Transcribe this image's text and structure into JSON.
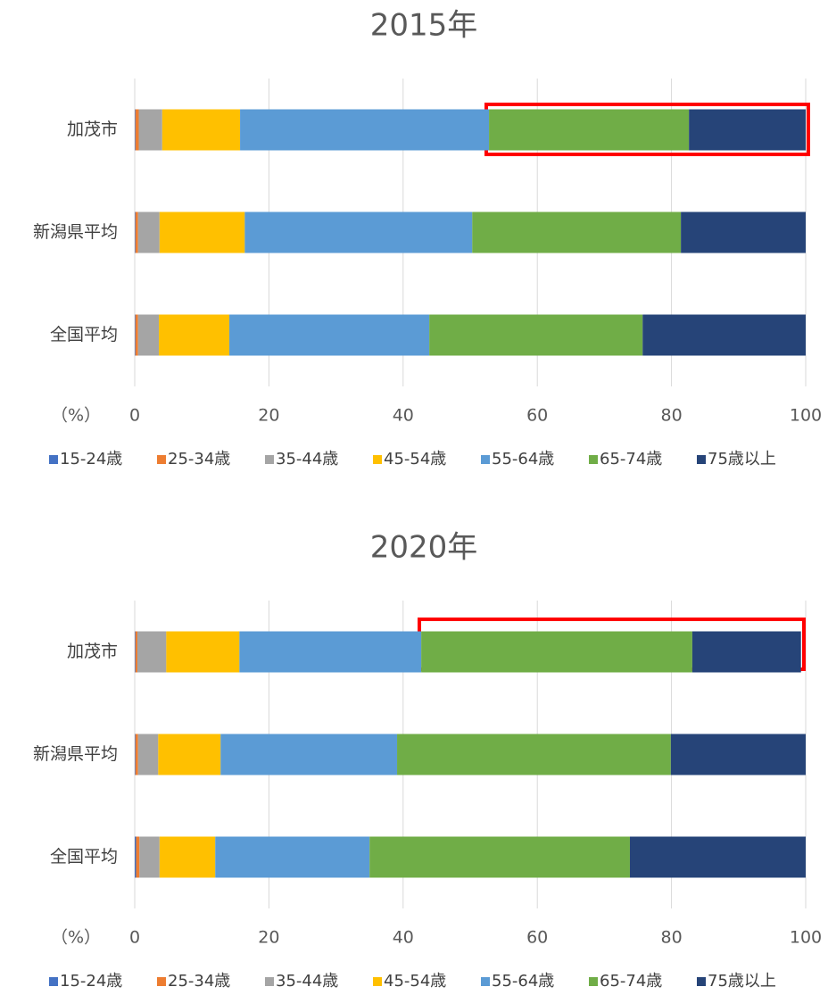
{
  "chart_data": [
    {
      "type": "stacked_barh",
      "title": "2015年",
      "xlabel": "（%）",
      "categories": [
        "加茂市",
        "新潟県平均",
        "全国平均"
      ],
      "series": [
        {
          "name": "15-24歳",
          "color": "#4472c4",
          "values": [
            0.1,
            0.1,
            0.1
          ]
        },
        {
          "name": "25-34歳",
          "color": "#ed7d31",
          "values": [
            0.5,
            0.4,
            0.4
          ]
        },
        {
          "name": "35-44歳",
          "color": "#a5a5a5",
          "values": [
            3.5,
            3.2,
            3.1
          ]
        },
        {
          "name": "45-54歳",
          "color": "#ffc000",
          "values": [
            11.6,
            12.7,
            10.5
          ]
        },
        {
          "name": "55-64歳",
          "color": "#5b9bd5",
          "values": [
            37.1,
            33.9,
            29.8
          ]
        },
        {
          "name": "65-74歳",
          "color": "#70ad47",
          "values": [
            29.8,
            31.1,
            31.8
          ]
        },
        {
          "name": "75歳以上",
          "color": "#264478",
          "values": [
            17.4,
            18.6,
            24.3
          ]
        }
      ],
      "xlim": [
        0,
        100
      ],
      "xticks": [
        0,
        20,
        40,
        60,
        80,
        100
      ],
      "grid": true,
      "legend": "bottom"
    },
    {
      "type": "stacked_barh",
      "title": "2020年",
      "xlabel": "（%）",
      "categories": [
        "加茂市",
        "新潟県平均",
        "全国平均"
      ],
      "series": [
        {
          "name": "15-24歳",
          "color": "#4472c4",
          "values": [
            0.1,
            0.1,
            0.2
          ]
        },
        {
          "name": "25-34歳",
          "color": "#ed7d31",
          "values": [
            0.3,
            0.4,
            0.5
          ]
        },
        {
          "name": "35-44歳",
          "color": "#a5a5a5",
          "values": [
            4.3,
            3.0,
            3.0
          ]
        },
        {
          "name": "45-54歳",
          "color": "#ffc000",
          "values": [
            10.9,
            9.3,
            8.3
          ]
        },
        {
          "name": "55-64歳",
          "color": "#5b9bd5",
          "values": [
            27.1,
            26.3,
            23.0
          ]
        },
        {
          "name": "65-74歳",
          "color": "#70ad47",
          "values": [
            40.4,
            40.8,
            38.8
          ]
        },
        {
          "name": "75歳以上",
          "color": "#264478",
          "values": [
            16.2,
            20.1,
            26.2
          ]
        }
      ],
      "xlim": [
        0,
        100
      ],
      "xticks": [
        0,
        20,
        40,
        60,
        80,
        100
      ],
      "grid": true,
      "legend": "bottom"
    }
  ]
}
